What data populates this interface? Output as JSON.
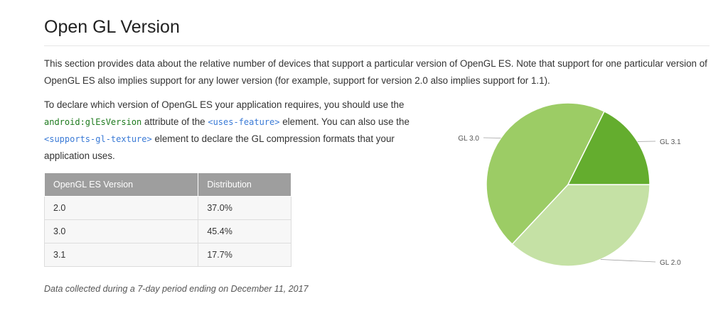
{
  "page": {
    "title": "Open GL Version",
    "intro": "This section provides data about the relative number of devices that support a particular version of OpenGL ES. Note that support for one particular version of OpenGL ES also implies support for any lower version (for example, support for version 2.0 also implies support for 1.1).",
    "declare": {
      "part1": "To declare which version of OpenGL ES your application requires, you should use the ",
      "code1": "android:glEsVersion",
      "part2": " attribute of the ",
      "code2": "<uses-feature>",
      "part3": " element. You can also use the ",
      "code3": "<supports-gl-texture>",
      "part4": " element to declare the GL compression formats that your application uses."
    },
    "footnote": "Data collected during a 7-day period ending on December 11, 2017"
  },
  "table": {
    "headers": [
      "OpenGL ES Version",
      "Distribution"
    ],
    "rows": [
      [
        "2.0",
        "37.0%"
      ],
      [
        "3.0",
        "45.4%"
      ],
      [
        "3.1",
        "17.7%"
      ]
    ]
  },
  "colors": {
    "GL 2.0": "#c5e1a5",
    "GL 3.0": "#9ccc65",
    "GL 3.1": "#64ad2e"
  },
  "chart_data": {
    "type": "pie",
    "categories": [
      "GL 2.0",
      "GL 3.0",
      "GL 3.1"
    ],
    "values": [
      37.0,
      45.4,
      17.7
    ],
    "labels": [
      "GL 2.0",
      "GL 3.0",
      "GL 3.1"
    ]
  }
}
